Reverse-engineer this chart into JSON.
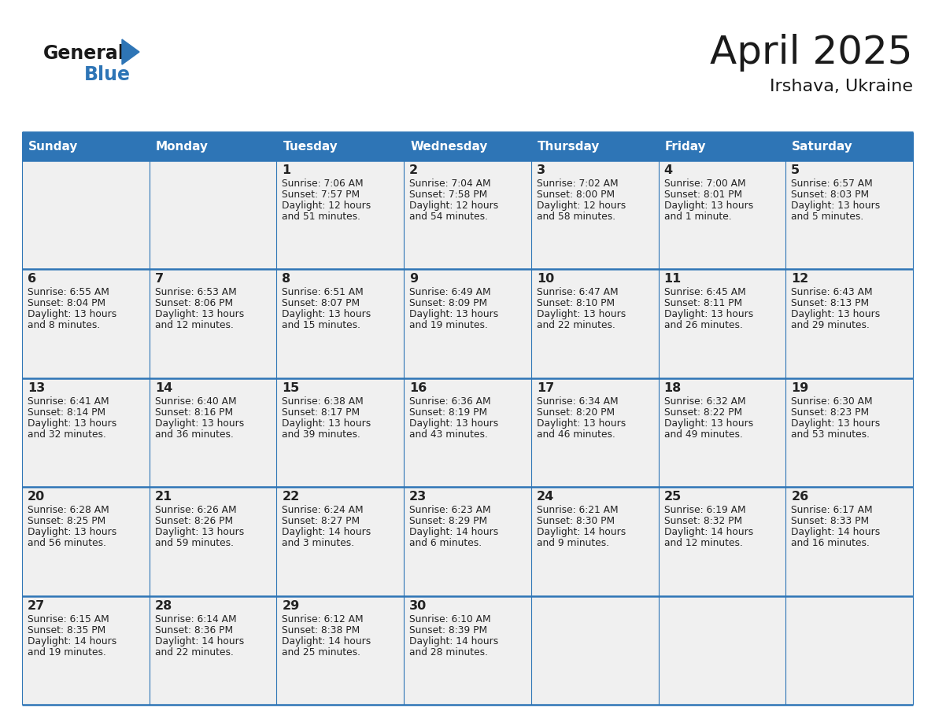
{
  "title": "April 2025",
  "subtitle": "Irshava, Ukraine",
  "header_bg": "#2E75B6",
  "header_text_color": "#FFFFFF",
  "cell_bg": "#F0F0F0",
  "border_color": "#2E75B6",
  "title_color": "#1A1A1A",
  "text_color": "#222222",
  "days_of_week": [
    "Sunday",
    "Monday",
    "Tuesday",
    "Wednesday",
    "Thursday",
    "Friday",
    "Saturday"
  ],
  "weeks": [
    [
      {
        "day": null,
        "sunrise": null,
        "sunset": null,
        "daylight_line1": null,
        "daylight_line2": null
      },
      {
        "day": null,
        "sunrise": null,
        "sunset": null,
        "daylight_line1": null,
        "daylight_line2": null
      },
      {
        "day": "1",
        "sunrise": "Sunrise: 7:06 AM",
        "sunset": "Sunset: 7:57 PM",
        "daylight_line1": "Daylight: 12 hours",
        "daylight_line2": "and 51 minutes."
      },
      {
        "day": "2",
        "sunrise": "Sunrise: 7:04 AM",
        "sunset": "Sunset: 7:58 PM",
        "daylight_line1": "Daylight: 12 hours",
        "daylight_line2": "and 54 minutes."
      },
      {
        "day": "3",
        "sunrise": "Sunrise: 7:02 AM",
        "sunset": "Sunset: 8:00 PM",
        "daylight_line1": "Daylight: 12 hours",
        "daylight_line2": "and 58 minutes."
      },
      {
        "day": "4",
        "sunrise": "Sunrise: 7:00 AM",
        "sunset": "Sunset: 8:01 PM",
        "daylight_line1": "Daylight: 13 hours",
        "daylight_line2": "and 1 minute."
      },
      {
        "day": "5",
        "sunrise": "Sunrise: 6:57 AM",
        "sunset": "Sunset: 8:03 PM",
        "daylight_line1": "Daylight: 13 hours",
        "daylight_line2": "and 5 minutes."
      }
    ],
    [
      {
        "day": "6",
        "sunrise": "Sunrise: 6:55 AM",
        "sunset": "Sunset: 8:04 PM",
        "daylight_line1": "Daylight: 13 hours",
        "daylight_line2": "and 8 minutes."
      },
      {
        "day": "7",
        "sunrise": "Sunrise: 6:53 AM",
        "sunset": "Sunset: 8:06 PM",
        "daylight_line1": "Daylight: 13 hours",
        "daylight_line2": "and 12 minutes."
      },
      {
        "day": "8",
        "sunrise": "Sunrise: 6:51 AM",
        "sunset": "Sunset: 8:07 PM",
        "daylight_line1": "Daylight: 13 hours",
        "daylight_line2": "and 15 minutes."
      },
      {
        "day": "9",
        "sunrise": "Sunrise: 6:49 AM",
        "sunset": "Sunset: 8:09 PM",
        "daylight_line1": "Daylight: 13 hours",
        "daylight_line2": "and 19 minutes."
      },
      {
        "day": "10",
        "sunrise": "Sunrise: 6:47 AM",
        "sunset": "Sunset: 8:10 PM",
        "daylight_line1": "Daylight: 13 hours",
        "daylight_line2": "and 22 minutes."
      },
      {
        "day": "11",
        "sunrise": "Sunrise: 6:45 AM",
        "sunset": "Sunset: 8:11 PM",
        "daylight_line1": "Daylight: 13 hours",
        "daylight_line2": "and 26 minutes."
      },
      {
        "day": "12",
        "sunrise": "Sunrise: 6:43 AM",
        "sunset": "Sunset: 8:13 PM",
        "daylight_line1": "Daylight: 13 hours",
        "daylight_line2": "and 29 minutes."
      }
    ],
    [
      {
        "day": "13",
        "sunrise": "Sunrise: 6:41 AM",
        "sunset": "Sunset: 8:14 PM",
        "daylight_line1": "Daylight: 13 hours",
        "daylight_line2": "and 32 minutes."
      },
      {
        "day": "14",
        "sunrise": "Sunrise: 6:40 AM",
        "sunset": "Sunset: 8:16 PM",
        "daylight_line1": "Daylight: 13 hours",
        "daylight_line2": "and 36 minutes."
      },
      {
        "day": "15",
        "sunrise": "Sunrise: 6:38 AM",
        "sunset": "Sunset: 8:17 PM",
        "daylight_line1": "Daylight: 13 hours",
        "daylight_line2": "and 39 minutes."
      },
      {
        "day": "16",
        "sunrise": "Sunrise: 6:36 AM",
        "sunset": "Sunset: 8:19 PM",
        "daylight_line1": "Daylight: 13 hours",
        "daylight_line2": "and 43 minutes."
      },
      {
        "day": "17",
        "sunrise": "Sunrise: 6:34 AM",
        "sunset": "Sunset: 8:20 PM",
        "daylight_line1": "Daylight: 13 hours",
        "daylight_line2": "and 46 minutes."
      },
      {
        "day": "18",
        "sunrise": "Sunrise: 6:32 AM",
        "sunset": "Sunset: 8:22 PM",
        "daylight_line1": "Daylight: 13 hours",
        "daylight_line2": "and 49 minutes."
      },
      {
        "day": "19",
        "sunrise": "Sunrise: 6:30 AM",
        "sunset": "Sunset: 8:23 PM",
        "daylight_line1": "Daylight: 13 hours",
        "daylight_line2": "and 53 minutes."
      }
    ],
    [
      {
        "day": "20",
        "sunrise": "Sunrise: 6:28 AM",
        "sunset": "Sunset: 8:25 PM",
        "daylight_line1": "Daylight: 13 hours",
        "daylight_line2": "and 56 minutes."
      },
      {
        "day": "21",
        "sunrise": "Sunrise: 6:26 AM",
        "sunset": "Sunset: 8:26 PM",
        "daylight_line1": "Daylight: 13 hours",
        "daylight_line2": "and 59 minutes."
      },
      {
        "day": "22",
        "sunrise": "Sunrise: 6:24 AM",
        "sunset": "Sunset: 8:27 PM",
        "daylight_line1": "Daylight: 14 hours",
        "daylight_line2": "and 3 minutes."
      },
      {
        "day": "23",
        "sunrise": "Sunrise: 6:23 AM",
        "sunset": "Sunset: 8:29 PM",
        "daylight_line1": "Daylight: 14 hours",
        "daylight_line2": "and 6 minutes."
      },
      {
        "day": "24",
        "sunrise": "Sunrise: 6:21 AM",
        "sunset": "Sunset: 8:30 PM",
        "daylight_line1": "Daylight: 14 hours",
        "daylight_line2": "and 9 minutes."
      },
      {
        "day": "25",
        "sunrise": "Sunrise: 6:19 AM",
        "sunset": "Sunset: 8:32 PM",
        "daylight_line1": "Daylight: 14 hours",
        "daylight_line2": "and 12 minutes."
      },
      {
        "day": "26",
        "sunrise": "Sunrise: 6:17 AM",
        "sunset": "Sunset: 8:33 PM",
        "daylight_line1": "Daylight: 14 hours",
        "daylight_line2": "and 16 minutes."
      }
    ],
    [
      {
        "day": "27",
        "sunrise": "Sunrise: 6:15 AM",
        "sunset": "Sunset: 8:35 PM",
        "daylight_line1": "Daylight: 14 hours",
        "daylight_line2": "and 19 minutes."
      },
      {
        "day": "28",
        "sunrise": "Sunrise: 6:14 AM",
        "sunset": "Sunset: 8:36 PM",
        "daylight_line1": "Daylight: 14 hours",
        "daylight_line2": "and 22 minutes."
      },
      {
        "day": "29",
        "sunrise": "Sunrise: 6:12 AM",
        "sunset": "Sunset: 8:38 PM",
        "daylight_line1": "Daylight: 14 hours",
        "daylight_line2": "and 25 minutes."
      },
      {
        "day": "30",
        "sunrise": "Sunrise: 6:10 AM",
        "sunset": "Sunset: 8:39 PM",
        "daylight_line1": "Daylight: 14 hours",
        "daylight_line2": "and 28 minutes."
      },
      {
        "day": null,
        "sunrise": null,
        "sunset": null,
        "daylight_line1": null,
        "daylight_line2": null
      },
      {
        "day": null,
        "sunrise": null,
        "sunset": null,
        "daylight_line1": null,
        "daylight_line2": null
      },
      {
        "day": null,
        "sunrise": null,
        "sunset": null,
        "daylight_line1": null,
        "daylight_line2": null
      }
    ]
  ],
  "logo_general_color": "#1A1A1A",
  "logo_blue_color": "#2E75B6",
  "figsize": [
    11.88,
    9.18
  ],
  "dpi": 100
}
